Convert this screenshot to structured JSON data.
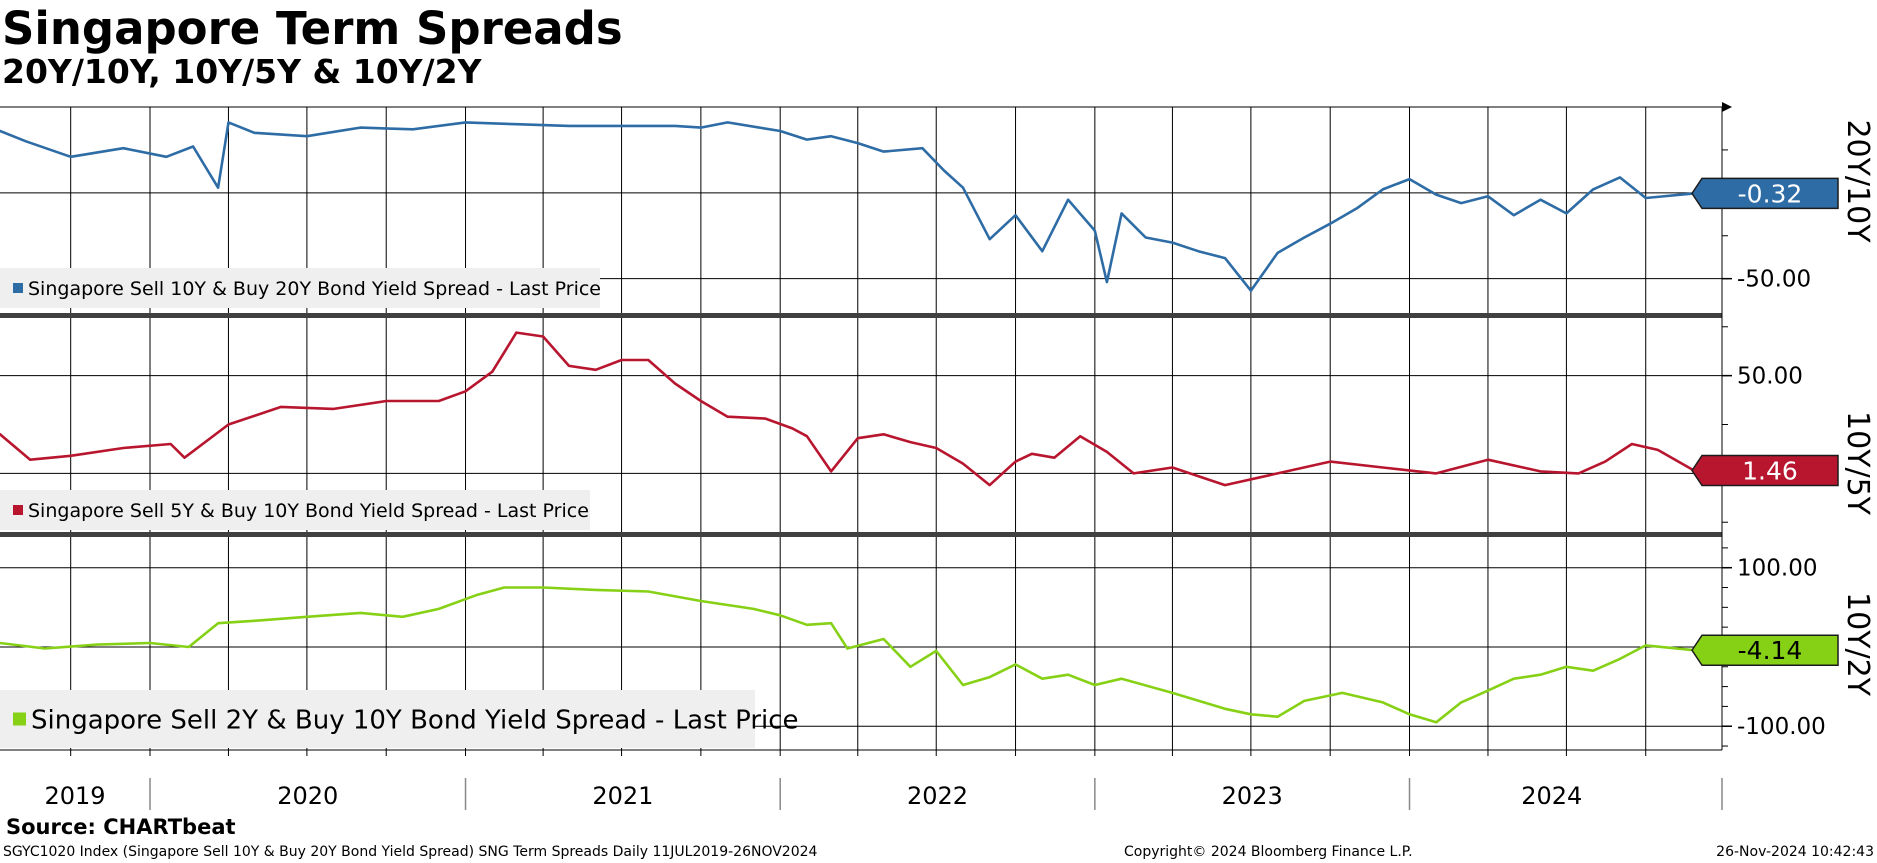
{
  "header": {
    "title": "Singapore Term Spreads",
    "subtitle": "20Y/10Y, 10Y/5Y & 10Y/2Y"
  },
  "footer": {
    "source": "Source: CHARTbeat",
    "left": "SGYC1020 Index (Singapore Sell 10Y & Buy 20Y Bond Yield Spread) SNG Term Spreads  Daily 11JUL2019-26NOV2024",
    "middle": "Copyright© 2024 Bloomberg Finance L.P.",
    "right": "26-Nov-2024 10:42:43"
  },
  "chart_data": {
    "type": "line",
    "x_axis": {
      "labels": [
        "2019",
        "2020",
        "2021",
        "2022",
        "2023",
        "2024"
      ],
      "range": [
        "2019-07-11",
        "2024-11-26"
      ]
    },
    "grid": true,
    "panels": [
      {
        "id": "p1",
        "panel_label": "20Y/10Y",
        "legend": "Singapore Sell 10Y & Buy 20Y Bond Yield Spread - Last Price",
        "color": "#2e6ca6",
        "last_value": "-0.32",
        "yticks": [
          {
            "value": -50,
            "label": "-50.00"
          }
        ],
        "ylim": [
          -70,
          50
        ],
        "x": [
          "2019-07-11",
          "2019-08-10",
          "2019-10-01",
          "2019-12-01",
          "2020-01-20",
          "2020-02-20",
          "2020-03-20",
          "2020-04-01",
          "2020-05-01",
          "2020-07-01",
          "2020-09-01",
          "2020-11-01",
          "2021-01-01",
          "2021-03-01",
          "2021-05-01",
          "2021-07-01",
          "2021-09-01",
          "2021-10-01",
          "2021-11-01",
          "2022-01-01",
          "2022-02-01",
          "2022-03-01",
          "2022-04-01",
          "2022-05-01",
          "2022-06-15",
          "2022-07-10",
          "2022-08-01",
          "2022-09-01",
          "2022-10-01",
          "2022-11-01",
          "2022-12-01",
          "2023-01-01",
          "2023-01-15",
          "2023-02-01",
          "2023-03-01",
          "2023-04-01",
          "2023-05-01",
          "2023-06-01",
          "2023-07-01",
          "2023-08-01",
          "2023-09-01",
          "2023-10-01",
          "2023-11-01",
          "2023-12-01",
          "2024-01-01",
          "2024-02-01",
          "2024-03-01",
          "2024-04-01",
          "2024-05-01",
          "2024-06-01",
          "2024-07-01",
          "2024-08-01",
          "2024-09-01",
          "2024-10-01",
          "2024-11-26"
        ],
        "y": [
          36,
          30,
          21,
          26,
          21,
          27,
          3,
          41,
          35,
          33,
          38,
          37,
          41,
          40,
          39,
          39,
          39,
          38,
          41,
          36,
          31,
          33,
          29,
          24,
          26,
          13,
          3,
          -27,
          -13,
          -34,
          -4,
          -22,
          -52,
          -12,
          -26,
          -29,
          -34,
          -38,
          -57,
          -35,
          -26,
          -18,
          -9,
          2,
          8,
          -1,
          -6,
          -2,
          -13,
          -4,
          -12,
          2,
          9,
          -3,
          -0.32
        ]
      },
      {
        "id": "p2",
        "panel_label": "10Y/5Y",
        "legend": "Singapore Sell 5Y & Buy 10Y Bond Yield Spread - Last Price",
        "color": "#b8162f",
        "last_value": "1.46",
        "yticks": [
          {
            "value": 50,
            "label": "50.00"
          }
        ],
        "ylim": [
          -30,
          80
        ],
        "x": [
          "2019-07-11",
          "2019-08-15",
          "2019-10-01",
          "2019-12-01",
          "2020-01-25",
          "2020-02-10",
          "2020-04-01",
          "2020-06-01",
          "2020-08-01",
          "2020-10-01",
          "2020-12-01",
          "2021-01-01",
          "2021-02-01",
          "2021-03-01",
          "2021-04-01",
          "2021-05-01",
          "2021-06-01",
          "2021-07-01",
          "2021-08-01",
          "2021-09-01",
          "2021-10-01",
          "2021-11-01",
          "2021-12-15",
          "2022-01-15",
          "2022-02-01",
          "2022-03-01",
          "2022-04-01",
          "2022-05-01",
          "2022-06-01",
          "2022-07-01",
          "2022-08-01",
          "2022-09-01",
          "2022-10-01",
          "2022-10-20",
          "2022-11-15",
          "2022-12-15",
          "2023-01-15",
          "2023-02-15",
          "2023-04-01",
          "2023-06-01",
          "2023-08-01",
          "2023-10-01",
          "2023-12-01",
          "2024-02-01",
          "2024-04-01",
          "2024-06-01",
          "2024-07-15",
          "2024-08-15",
          "2024-09-15",
          "2024-10-15",
          "2024-11-26"
        ],
        "y": [
          20,
          7,
          9,
          13,
          15,
          8,
          25,
          34,
          33,
          37,
          37,
          42,
          52,
          72,
          70,
          55,
          53,
          58,
          58,
          46,
          37,
          29,
          28,
          23,
          19,
          1,
          18,
          20,
          16,
          13,
          5,
          -6,
          6,
          10,
          8,
          19,
          11,
          0,
          3,
          -6,
          0,
          6,
          3,
          0,
          7,
          1,
          0,
          6,
          15,
          12,
          1.46
        ]
      },
      {
        "id": "p3",
        "panel_label": "10Y/2Y",
        "legend": "Singapore Sell 2Y & Buy 10Y Bond Yield Spread - Last Price",
        "color": "#86d116",
        "last_value": "-4.14",
        "yticks": [
          {
            "value": 100,
            "label": "100.00"
          },
          {
            "value": -100,
            "label": "-100.00"
          }
        ],
        "ylim": [
          -130,
          140
        ],
        "x": [
          "2019-07-11",
          "2019-09-01",
          "2019-11-01",
          "2020-01-01",
          "2020-02-15",
          "2020-03-20",
          "2020-05-01",
          "2020-07-01",
          "2020-09-01",
          "2020-10-20",
          "2020-12-01",
          "2021-01-15",
          "2021-02-15",
          "2021-04-01",
          "2021-06-01",
          "2021-08-01",
          "2021-10-01",
          "2021-12-01",
          "2022-01-01",
          "2022-02-01",
          "2022-03-01",
          "2022-03-20",
          "2022-05-01",
          "2022-06-01",
          "2022-07-01",
          "2022-08-01",
          "2022-09-01",
          "2022-10-01",
          "2022-11-01",
          "2022-12-01",
          "2023-01-01",
          "2023-02-01",
          "2023-04-01",
          "2023-06-01",
          "2023-07-01",
          "2023-08-01",
          "2023-09-01",
          "2023-10-15",
          "2023-12-01",
          "2024-01-01",
          "2024-02-01",
          "2024-03-01",
          "2024-04-01",
          "2024-05-01",
          "2024-06-01",
          "2024-07-01",
          "2024-08-01",
          "2024-09-01",
          "2024-10-01",
          "2024-11-26"
        ],
        "y": [
          5,
          -2,
          3,
          5,
          0,
          30,
          33,
          38,
          43,
          38,
          48,
          66,
          75,
          75,
          72,
          70,
          58,
          48,
          40,
          28,
          30,
          -2,
          10,
          -25,
          -5,
          -48,
          -38,
          -22,
          -40,
          -35,
          -48,
          -40,
          -58,
          -78,
          -85,
          -88,
          -68,
          -58,
          -70,
          -85,
          -95,
          -70,
          -55,
          -40,
          -35,
          -25,
          -30,
          -15,
          2,
          -4.14
        ]
      }
    ]
  }
}
